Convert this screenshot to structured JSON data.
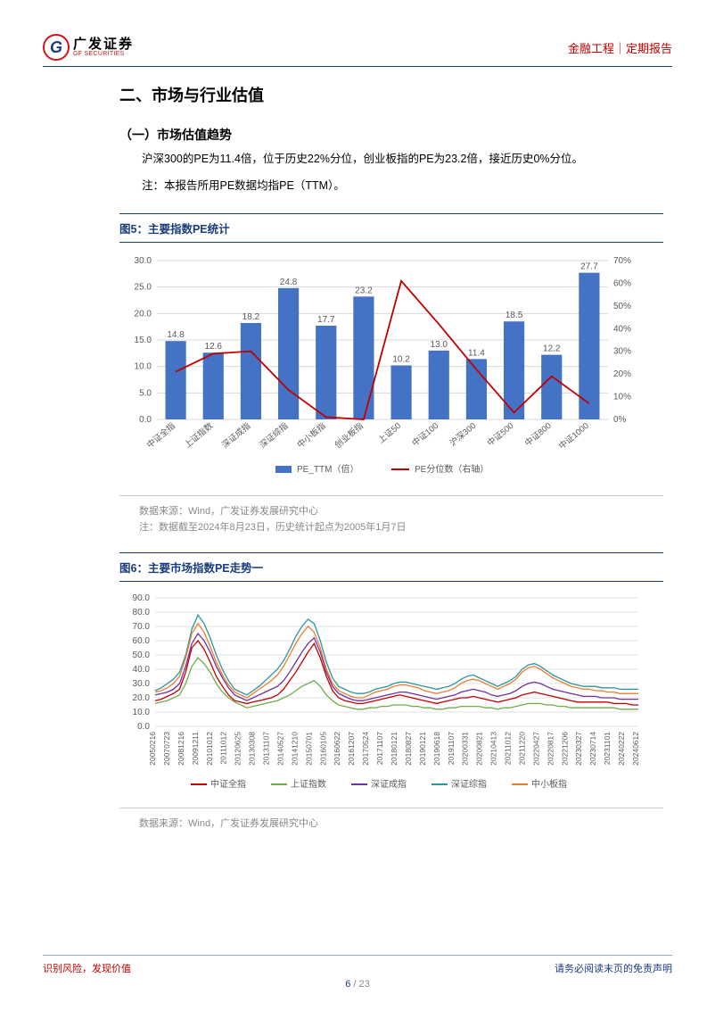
{
  "header": {
    "logo_cn": "广发证券",
    "logo_en": "GF SECURITIES",
    "right": "金融工程｜定期报告"
  },
  "section": {
    "h1": "二、市场与行业估值",
    "h2": "（一）市场估值趋势",
    "p1": "沪深300的PE为11.4倍，位于历史22%分位，创业板指的PE为23.2倍，接近历史0%分位。",
    "p2": "注：本报告所用PE数据均指PE（TTM）。"
  },
  "fig5": {
    "title": "图5：主要指数PE统计",
    "type": "bar+line",
    "categories": [
      "中证全指",
      "上证指数",
      "深证成指",
      "深证综指",
      "中小板指",
      "创业板指",
      "上证50",
      "中证100",
      "沪深300",
      "中证500",
      "中证800",
      "中证1000"
    ],
    "bar_values": [
      14.8,
      12.6,
      18.2,
      24.8,
      17.7,
      23.2,
      10.2,
      13.0,
      11.4,
      18.5,
      12.2,
      27.7
    ],
    "line_values_pct": [
      21,
      29,
      30,
      13,
      1,
      0,
      61,
      42,
      22,
      3,
      19,
      7
    ],
    "y_left": {
      "min": 0,
      "max": 30,
      "step": 5,
      "fmt": ".1f"
    },
    "y_right": {
      "min": 0,
      "max": 70,
      "step": 10,
      "suffix": "%"
    },
    "bar_color": "#4472c4",
    "line_color": "#c00000",
    "grid_color": "#d9d9d9",
    "legend": {
      "bar": "PE_TTM（倍）",
      "line": "PE分位数（右轴）"
    },
    "source": "数据来源：Wind，广发证券发展研究中心",
    "note": "注：数据截至2024年8月23日，历史统计起点为2005年1月7日"
  },
  "fig6": {
    "title": "图6：主要市场指数PE走势一",
    "type": "line",
    "y": {
      "min": 0,
      "max": 90,
      "step": 10,
      "fmt": ".1f"
    },
    "x_labels": [
      "20050216",
      "20070723",
      "20081216",
      "20091211",
      "20101012",
      "20111012",
      "20120625",
      "20130308",
      "20131107",
      "20140527",
      "20141210",
      "20150701",
      "20160105",
      "20160622",
      "20161207",
      "20170524",
      "20171107",
      "20180121",
      "20180827",
      "20190121",
      "20190618",
      "20191107",
      "20200331",
      "20200821",
      "20210413",
      "20211012",
      "20211220",
      "20220427",
      "20220817",
      "20221206",
      "20230327",
      "20230714",
      "20231101",
      "20240222",
      "20240612"
    ],
    "series": [
      {
        "name": "中证全指",
        "color": "#c00000",
        "data": [
          18,
          19,
          21,
          23,
          26,
          38,
          55,
          60,
          54,
          45,
          35,
          28,
          22,
          18,
          17,
          16,
          17,
          18,
          19,
          20,
          22,
          26,
          32,
          38,
          45,
          52,
          58,
          48,
          35,
          25,
          20,
          18,
          17,
          16,
          16,
          17,
          18,
          19,
          20,
          21,
          22,
          21,
          20,
          19,
          18,
          17,
          16,
          17,
          18,
          19,
          20,
          20,
          21,
          20,
          19,
          18,
          17,
          18,
          19,
          20,
          22,
          23,
          24,
          23,
          22,
          21,
          20,
          19,
          18,
          17,
          17,
          17,
          17,
          17,
          17,
          16,
          16,
          16,
          15,
          15
        ]
      },
      {
        "name": "上证指数",
        "color": "#70ad47",
        "data": [
          16,
          17,
          18,
          20,
          22,
          30,
          42,
          48,
          44,
          38,
          30,
          24,
          20,
          17,
          15,
          13,
          14,
          15,
          16,
          17,
          18,
          20,
          22,
          25,
          28,
          30,
          32,
          28,
          22,
          18,
          15,
          14,
          13,
          12,
          12,
          13,
          13,
          14,
          14,
          15,
          15,
          15,
          14,
          14,
          13,
          13,
          12,
          12,
          13,
          13,
          14,
          14,
          14,
          14,
          13,
          13,
          12,
          13,
          13,
          14,
          15,
          16,
          16,
          16,
          15,
          15,
          14,
          14,
          13,
          13,
          13,
          13,
          13,
          13,
          13,
          13,
          12,
          12,
          12,
          12
        ]
      },
      {
        "name": "深证成指",
        "color": "#7030a0",
        "data": [
          22,
          23,
          24,
          26,
          30,
          42,
          58,
          65,
          60,
          52,
          42,
          34,
          27,
          22,
          20,
          18,
          20,
          22,
          24,
          26,
          28,
          32,
          38,
          45,
          52,
          58,
          62,
          52,
          38,
          28,
          23,
          21,
          19,
          18,
          18,
          19,
          20,
          21,
          22,
          23,
          24,
          24,
          23,
          22,
          21,
          20,
          19,
          20,
          21,
          22,
          24,
          25,
          26,
          25,
          24,
          22,
          21,
          22,
          23,
          25,
          28,
          30,
          31,
          30,
          28,
          26,
          25,
          24,
          23,
          22,
          21,
          21,
          21,
          20,
          20,
          20,
          19,
          19,
          19,
          19
        ]
      },
      {
        "name": "深证综指",
        "color": "#2e9599",
        "data": [
          25,
          27,
          30,
          33,
          38,
          50,
          68,
          78,
          72,
          62,
          50,
          40,
          32,
          26,
          24,
          22,
          25,
          28,
          32,
          36,
          40,
          46,
          54,
          63,
          70,
          75,
          72,
          60,
          45,
          34,
          28,
          26,
          24,
          23,
          23,
          24,
          26,
          27,
          28,
          30,
          31,
          31,
          30,
          29,
          28,
          27,
          26,
          27,
          28,
          30,
          33,
          35,
          36,
          34,
          32,
          30,
          28,
          30,
          32,
          35,
          40,
          43,
          44,
          42,
          39,
          36,
          34,
          32,
          30,
          29,
          28,
          28,
          28,
          27,
          27,
          27,
          26,
          26,
          26,
          26
        ]
      },
      {
        "name": "中小板指",
        "color": "#ed7d31",
        "data": [
          24,
          25,
          27,
          30,
          35,
          48,
          65,
          72,
          66,
          56,
          45,
          36,
          29,
          24,
          22,
          20,
          23,
          26,
          29,
          32,
          36,
          42,
          50,
          58,
          65,
          70,
          66,
          55,
          40,
          30,
          25,
          23,
          21,
          20,
          20,
          22,
          24,
          25,
          26,
          28,
          29,
          29,
          28,
          27,
          25,
          24,
          23,
          24,
          25,
          27,
          30,
          32,
          33,
          32,
          30,
          28,
          26,
          28,
          30,
          33,
          38,
          41,
          42,
          40,
          37,
          34,
          32,
          30,
          28,
          27,
          26,
          26,
          25,
          25,
          24,
          24,
          23,
          23,
          23,
          23
        ]
      }
    ],
    "legend_names": [
      "中证全指",
      "上证指数",
      "深证成指",
      "深证综指",
      "中小板指"
    ],
    "legend_colors": [
      "#c00000",
      "#70ad47",
      "#7030a0",
      "#2e9599",
      "#ed7d31"
    ],
    "source": "数据来源：Wind，广发证券发展研究中心"
  },
  "footer": {
    "left": "识别风险，发现价值",
    "right": "请务必阅读末页的免责声明",
    "page": "6",
    "total": "23"
  }
}
